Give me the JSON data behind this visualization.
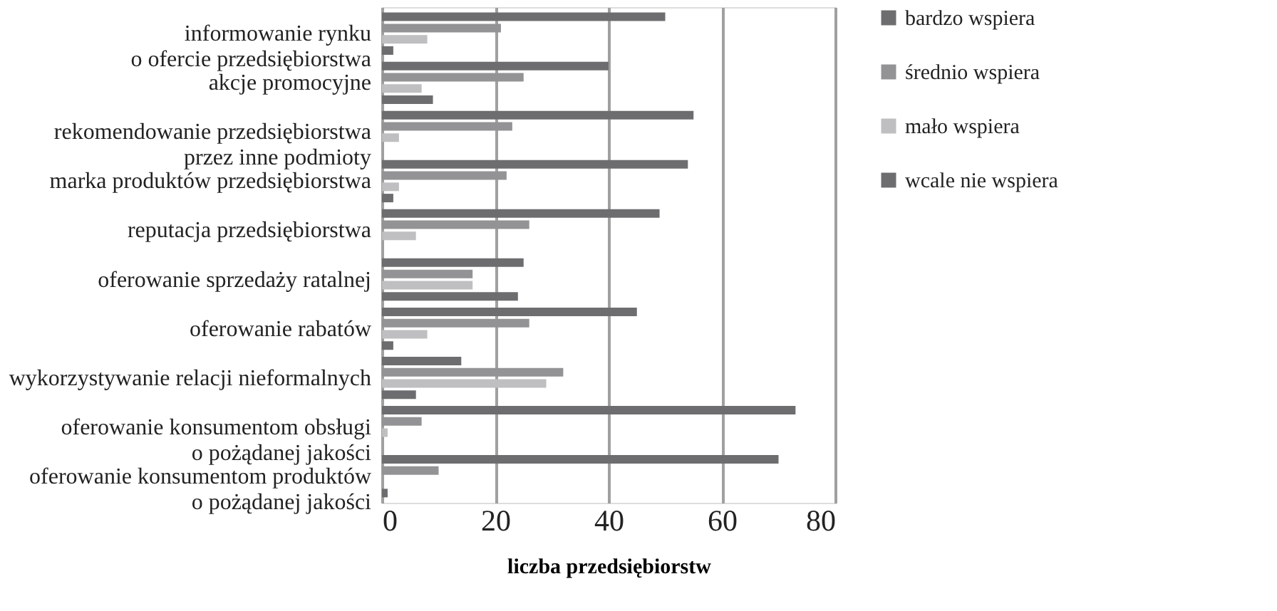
{
  "chart_data": {
    "type": "bar",
    "orientation": "horizontal",
    "xlabel": "liczba przedsiębiorstw",
    "categories": [
      "informowanie rynku\no ofercie przedsiębiorstwa",
      "akcje promocyjne",
      "rekomendowanie przedsiębiorstwa\nprzez inne podmioty",
      "marka produktów przedsiębiorstwa",
      "reputacja przedsiębiorstwa",
      "oferowanie sprzedaży ratalnej",
      "oferowanie rabatów",
      "wykorzystywanie relacji nieformalnych",
      "oferowanie konsumentom obsługi\no pożądanej jakości",
      "oferowanie konsumentom produktów\no pożądanej jakości"
    ],
    "series": [
      {
        "name": "bardzo wspiera",
        "color": "#6d6d6f",
        "values": [
          50,
          40,
          55,
          54,
          49,
          25,
          45,
          14,
          73,
          70
        ]
      },
      {
        "name": "średnio wspiera",
        "color": "#939395",
        "values": [
          21,
          25,
          23,
          22,
          26,
          16,
          26,
          32,
          7,
          10
        ]
      },
      {
        "name": "mało wspiera",
        "color": "#bfbfc1",
        "values": [
          8,
          7,
          3,
          3,
          6,
          16,
          8,
          29,
          1,
          0
        ]
      },
      {
        "name": "wcale nie wspiera",
        "color": "#6d6d6f",
        "values": [
          2,
          9,
          0,
          2,
          0,
          24,
          2,
          6,
          0,
          1
        ]
      }
    ],
    "xlim": [
      0,
      80
    ],
    "xticks": [
      0,
      20,
      40,
      60,
      80
    ],
    "grid": "x",
    "legend": "right"
  }
}
